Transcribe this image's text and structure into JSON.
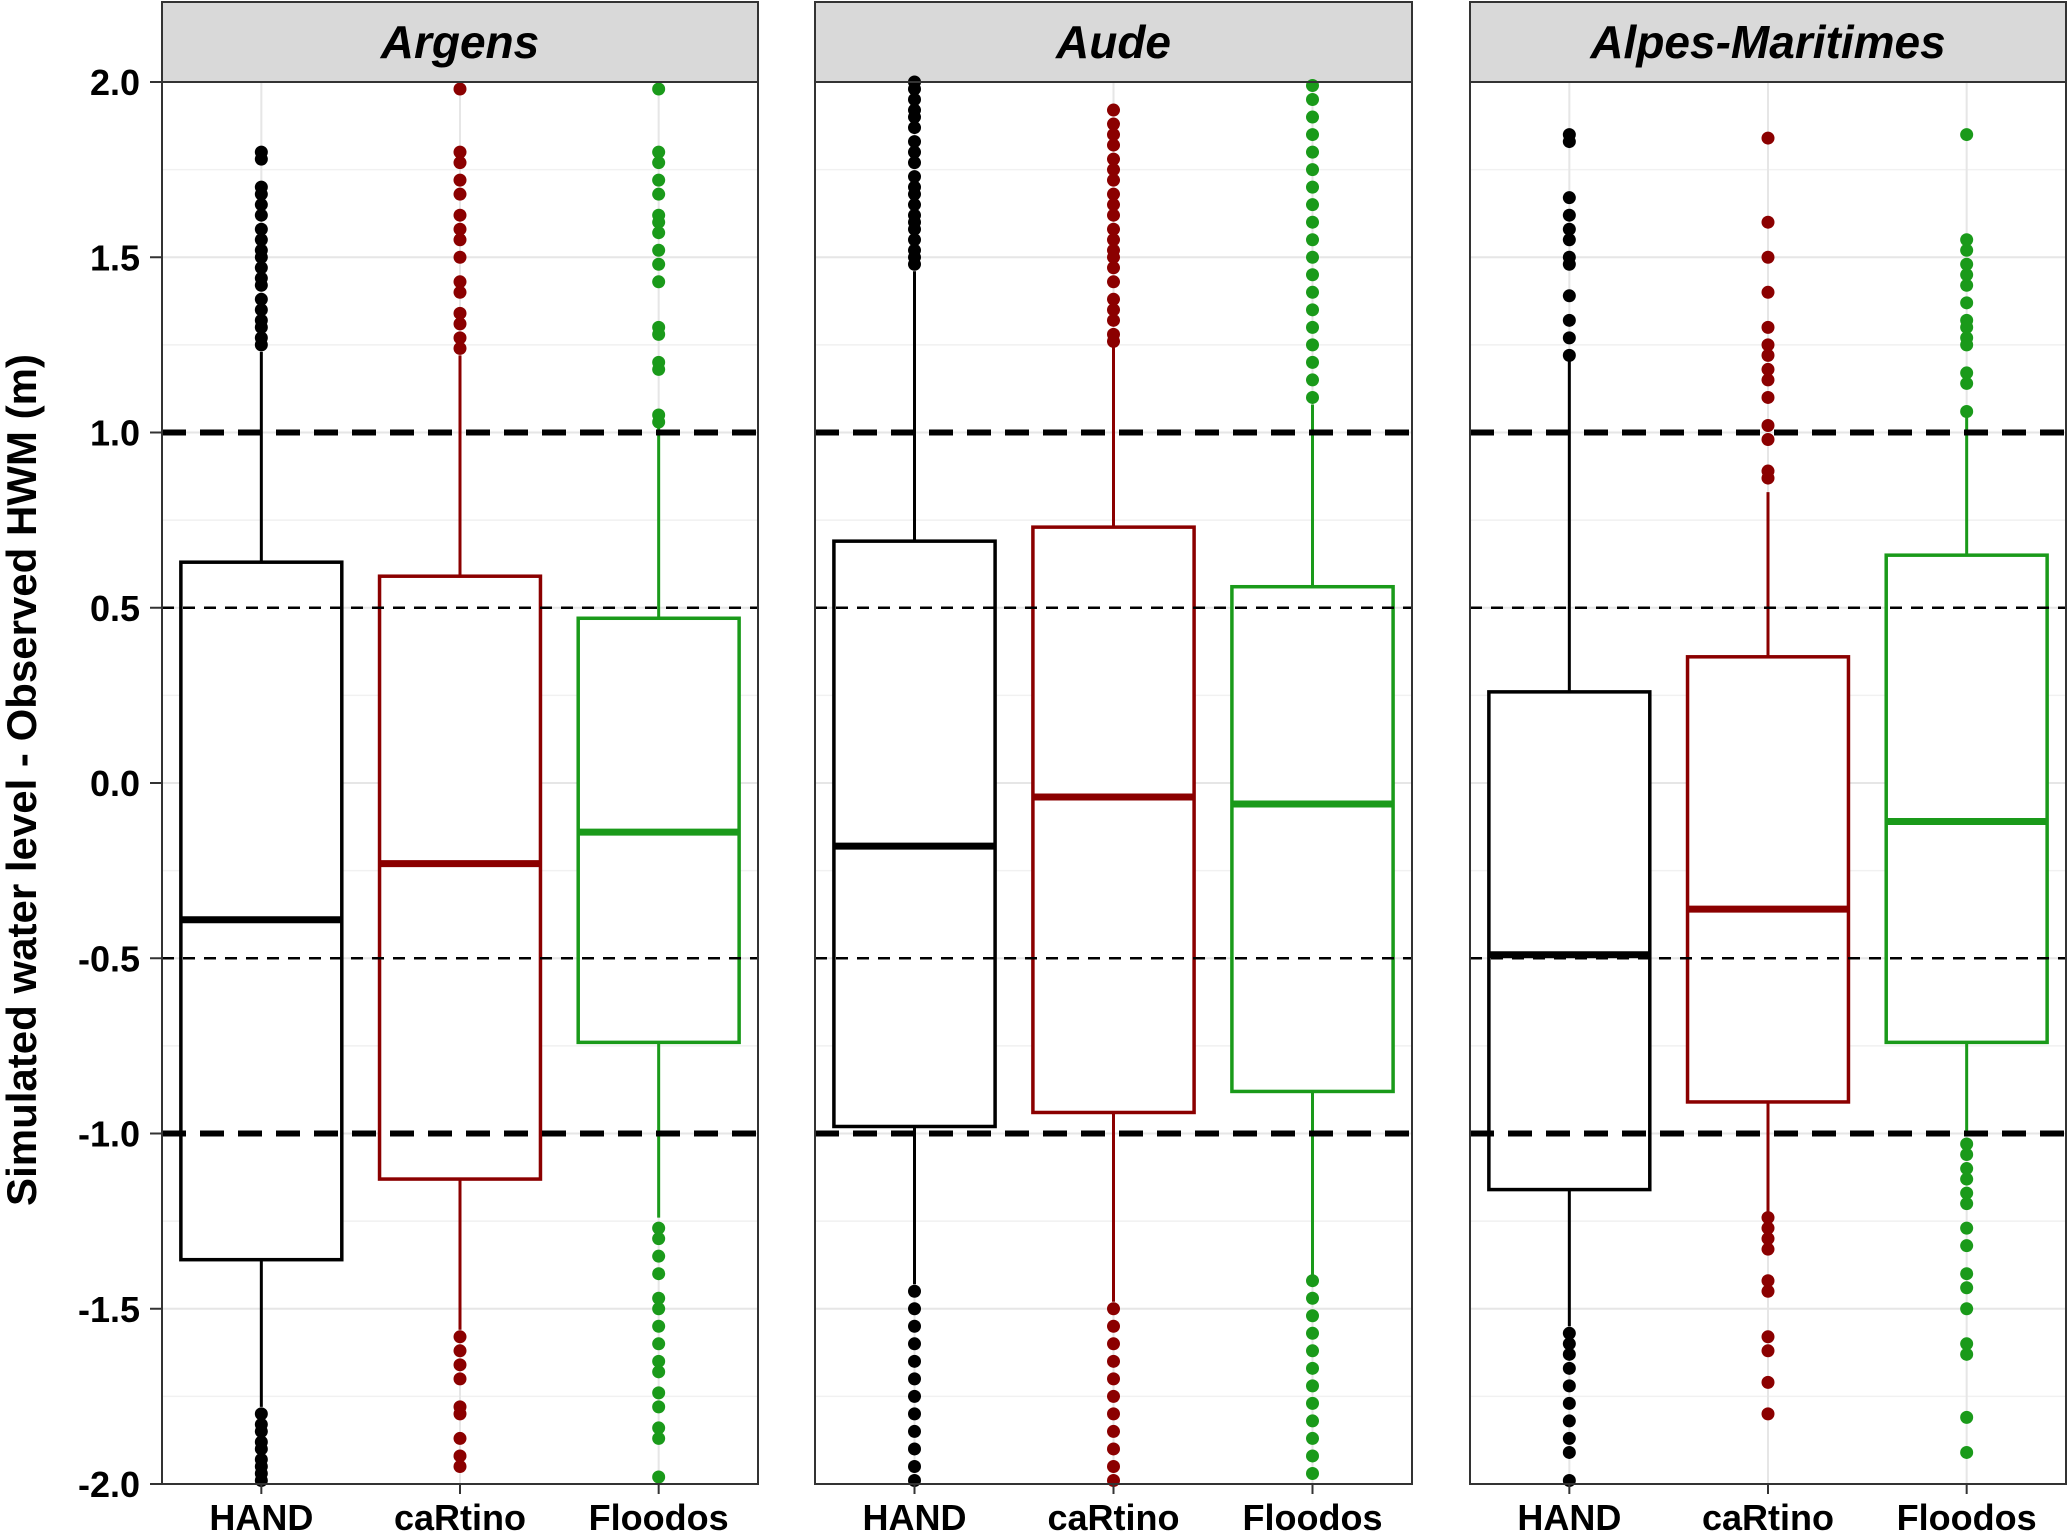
{
  "chart_data": {
    "type": "boxplot",
    "ylabel": "Simulated water level - Observed HWM (m)",
    "xlabel": "",
    "ylim": [
      -2.0,
      2.0
    ],
    "yticks": [
      "2.0",
      "1.5",
      "1.0",
      "0.5",
      "0.0",
      "-0.5",
      "-1.0",
      "-1.5",
      "-2.0"
    ],
    "ytick_values": [
      2.0,
      1.5,
      1.0,
      0.5,
      0.0,
      -0.5,
      -1.0,
      -1.5,
      -2.0
    ],
    "reference_lines": [
      {
        "y": 1.0,
        "style": "long-dash",
        "weight": "thick"
      },
      {
        "y": -1.0,
        "style": "long-dash",
        "weight": "thick"
      },
      {
        "y": 0.5,
        "style": "short-dash",
        "weight": "thin"
      },
      {
        "y": -0.5,
        "style": "short-dash",
        "weight": "thin"
      }
    ],
    "grid": true,
    "categories": [
      "HAND",
      "caRtino",
      "Floodos"
    ],
    "colors": {
      "HAND": "#000000",
      "caRtino": "#8b0000",
      "Floodos": "#1a9a1a"
    },
    "panels": [
      {
        "title": "Argens",
        "boxes": [
          {
            "category": "HAND",
            "q1": -1.36,
            "median": -0.39,
            "q3": 0.63,
            "whisker_low": -1.78,
            "whisker_high": 1.23,
            "outliers": [
              1.8,
              1.78,
              1.7,
              1.68,
              1.65,
              1.62,
              1.58,
              1.55,
              1.52,
              1.5,
              1.47,
              1.44,
              1.42,
              1.38,
              1.35,
              1.32,
              1.3,
              1.27,
              1.25,
              -1.8,
              -1.83,
              -1.85,
              -1.88,
              -1.9,
              -1.93,
              -1.95,
              -1.97,
              -1.99
            ]
          },
          {
            "category": "caRtino",
            "q1": -1.13,
            "median": -0.23,
            "q3": 0.59,
            "whisker_low": -1.56,
            "whisker_high": 1.22,
            "outliers": [
              1.98,
              1.8,
              1.77,
              1.72,
              1.68,
              1.62,
              1.58,
              1.55,
              1.5,
              1.43,
              1.4,
              1.34,
              1.31,
              1.27,
              1.24,
              -1.58,
              -1.62,
              -1.66,
              -1.7,
              -1.78,
              -1.8,
              -1.87,
              -1.92,
              -1.95
            ]
          },
          {
            "category": "Floodos",
            "q1": -0.74,
            "median": -0.14,
            "q3": 0.47,
            "whisker_low": -1.24,
            "whisker_high": 1.02,
            "outliers": [
              1.98,
              1.8,
              1.77,
              1.72,
              1.68,
              1.62,
              1.6,
              1.57,
              1.52,
              1.48,
              1.43,
              1.3,
              1.28,
              1.2,
              1.18,
              1.05,
              1.03,
              -1.27,
              -1.3,
              -1.35,
              -1.4,
              -1.47,
              -1.5,
              -1.55,
              -1.6,
              -1.65,
              -1.68,
              -1.74,
              -1.78,
              -1.84,
              -1.87,
              -1.98
            ]
          }
        ]
      },
      {
        "title": "Aude",
        "boxes": [
          {
            "category": "HAND",
            "q1": -0.98,
            "median": -0.18,
            "q3": 0.69,
            "whisker_low": -1.43,
            "whisker_high": 1.46,
            "outliers": [
              2.0,
              1.98,
              1.95,
              1.92,
              1.9,
              1.87,
              1.83,
              1.8,
              1.77,
              1.73,
              1.7,
              1.68,
              1.65,
              1.62,
              1.6,
              1.58,
              1.55,
              1.52,
              1.5,
              1.48,
              -1.45,
              -1.5,
              -1.55,
              -1.6,
              -1.65,
              -1.7,
              -1.75,
              -1.8,
              -1.85,
              -1.9,
              -1.95,
              -1.99
            ]
          },
          {
            "category": "caRtino",
            "q1": -0.94,
            "median": -0.04,
            "q3": 0.73,
            "whisker_low": -1.48,
            "whisker_high": 1.25,
            "outliers": [
              1.92,
              1.88,
              1.85,
              1.82,
              1.78,
              1.75,
              1.72,
              1.68,
              1.65,
              1.62,
              1.58,
              1.55,
              1.52,
              1.5,
              1.47,
              1.43,
              1.38,
              1.35,
              1.32,
              1.28,
              1.26,
              -1.5,
              -1.55,
              -1.6,
              -1.65,
              -1.7,
              -1.75,
              -1.8,
              -1.85,
              -1.9,
              -1.95,
              -1.99
            ]
          },
          {
            "category": "Floodos",
            "q1": -0.88,
            "median": -0.06,
            "q3": 0.56,
            "whisker_low": -1.41,
            "whisker_high": 1.08,
            "outliers": [
              1.99,
              1.95,
              1.9,
              1.85,
              1.8,
              1.75,
              1.7,
              1.65,
              1.6,
              1.55,
              1.5,
              1.45,
              1.4,
              1.35,
              1.3,
              1.25,
              1.2,
              1.15,
              1.1,
              -1.42,
              -1.47,
              -1.52,
              -1.57,
              -1.62,
              -1.67,
              -1.72,
              -1.77,
              -1.82,
              -1.87,
              -1.92,
              -1.97
            ]
          }
        ]
      },
      {
        "title": "Alpes-Maritimes",
        "boxes": [
          {
            "category": "HAND",
            "q1": -1.16,
            "median": -0.49,
            "q3": 0.26,
            "whisker_low": -1.55,
            "whisker_high": 1.21,
            "outliers": [
              1.85,
              1.83,
              1.67,
              1.62,
              1.58,
              1.55,
              1.5,
              1.48,
              1.39,
              1.32,
              1.27,
              1.22,
              -1.57,
              -1.6,
              -1.63,
              -1.67,
              -1.72,
              -1.77,
              -1.82,
              -1.87,
              -1.91,
              -1.99
            ]
          },
          {
            "category": "caRtino",
            "q1": -0.91,
            "median": -0.36,
            "q3": 0.36,
            "whisker_low": -1.24,
            "whisker_high": 0.83,
            "outliers": [
              1.84,
              1.6,
              1.5,
              1.4,
              1.3,
              1.25,
              1.22,
              1.18,
              1.15,
              1.1,
              1.02,
              0.98,
              0.89,
              0.87,
              -1.24,
              -1.27,
              -1.3,
              -1.33,
              -1.42,
              -1.45,
              -1.58,
              -1.62,
              -1.71,
              -1.8
            ]
          },
          {
            "category": "Floodos",
            "q1": -0.74,
            "median": -0.11,
            "q3": 0.65,
            "whisker_low": -1.0,
            "whisker_high": 1.06,
            "outliers": [
              1.85,
              1.55,
              1.52,
              1.48,
              1.45,
              1.42,
              1.37,
              1.32,
              1.3,
              1.27,
              1.25,
              1.17,
              1.14,
              1.06,
              -1.03,
              -1.06,
              -1.1,
              -1.13,
              -1.17,
              -1.2,
              -1.27,
              -1.32,
              -1.4,
              -1.44,
              -1.5,
              -1.6,
              -1.63,
              -1.81,
              -1.91
            ]
          }
        ]
      }
    ]
  }
}
